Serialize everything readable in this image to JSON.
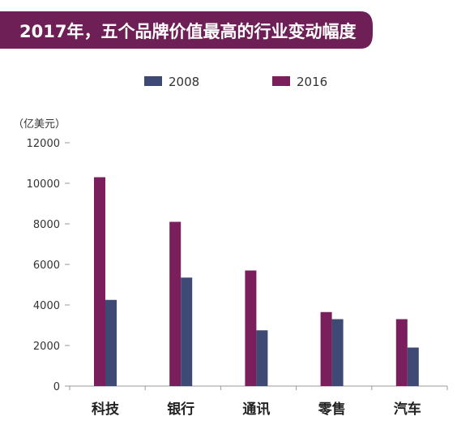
{
  "chart_data": {
    "type": "bar",
    "title": "2017年，五个品牌价值最高的行业变动幅度",
    "unit_label": "（亿美元）",
    "categories": [
      "科技",
      "银行",
      "通讯",
      "零售",
      "汽车"
    ],
    "series": [
      {
        "name": "2016",
        "color": "#7a1e5c",
        "values": [
          10300,
          8100,
          5700,
          3650,
          3300
        ]
      },
      {
        "name": "2008",
        "color": "#3f4a74",
        "values": [
          4250,
          5350,
          2750,
          3300,
          1900
        ]
      }
    ],
    "legend_order": [
      "2008",
      "2016"
    ],
    "yticks": [
      0,
      2000,
      4000,
      6000,
      8000,
      10000,
      12000
    ],
    "ylim": [
      0,
      12000
    ],
    "grid": false,
    "legend_position": "top"
  },
  "colors": {
    "title_band": "#6e1f55",
    "axis": "#999999"
  }
}
